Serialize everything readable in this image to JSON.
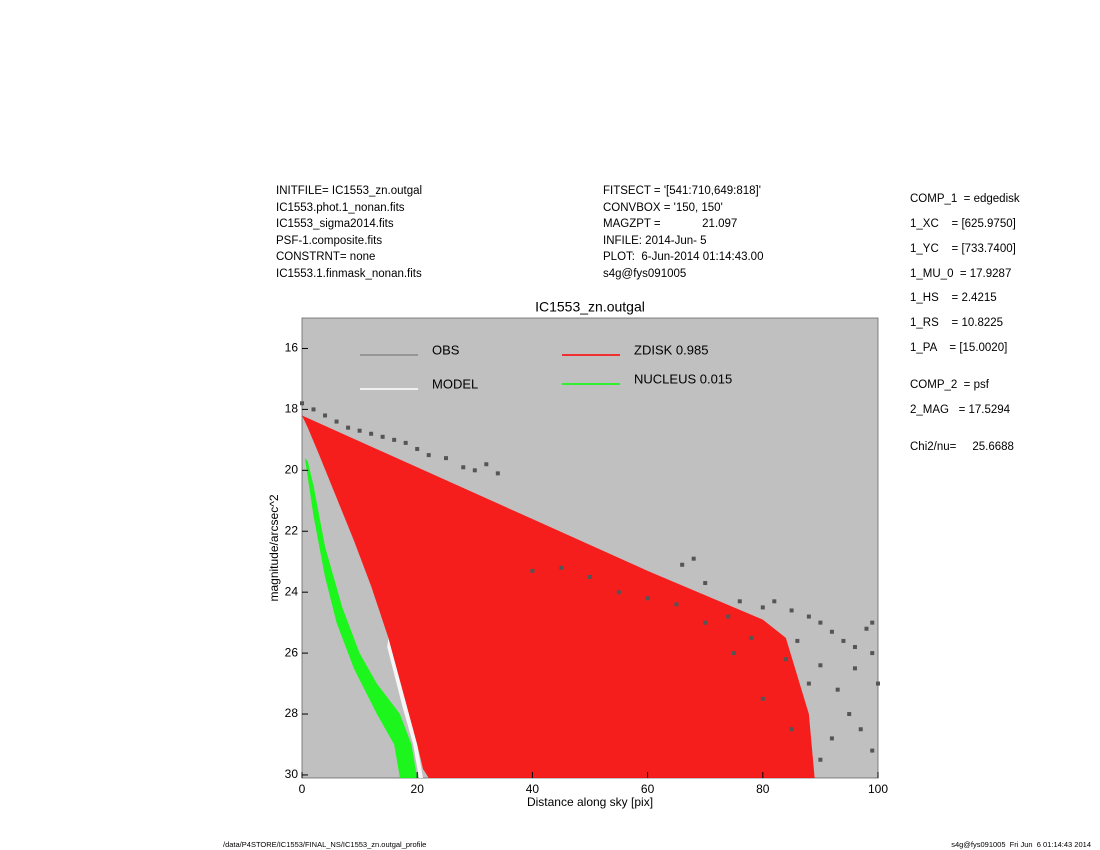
{
  "header": {
    "left": [
      "INITFILE= IC1553_zn.outgal",
      "IC1553.phot.1_nonan.fits",
      "IC1553_sigma2014.fits",
      "PSF-1.composite.fits",
      "CONSTRNT= none",
      "IC1553.1.finmask_nonan.fits"
    ],
    "middle": [
      "FITSECT = '[541:710,649:818]'",
      "CONVBOX = '150, 150'",
      "MAGZPT =             21.097",
      "INFILE: 2014-Jun- 5",
      "PLOT:  6-Jun-2014 01:14:43.00",
      "s4g@fys091005"
    ],
    "params": [
      "COMP_1  = edgedisk",
      "1_XC    = [625.9750]",
      "1_YC    = [733.7400]",
      "1_MU_0  = 17.9287",
      "1_HS    = 2.4215",
      "1_RS    = 10.8225",
      "1_PA    = [15.0020]",
      "COMP_2  = psf",
      "2_MAG   = 17.5294",
      "Chi2/nu=     25.6688"
    ]
  },
  "footer": {
    "left": "/data/P4STORE/IC1553/FINAL_NS/IC1553_zn.outgal_profile",
    "right": "s4g@fys091005  Fri Jun  6 01:14:43 2014"
  },
  "chart_data": {
    "type": "scatter",
    "title": "IC1553_zn.outgal",
    "xlabel": "Distance along sky [pix]",
    "ylabel": "magnitude/arcsec^2",
    "xlim": [
      0,
      100
    ],
    "ylim": [
      15,
      30.1
    ],
    "y_inverted": true,
    "xticks": [
      0,
      20,
      40,
      60,
      80,
      100
    ],
    "yticks": [
      16,
      18,
      20,
      22,
      24,
      26,
      28,
      30
    ],
    "series": [
      {
        "name": "OBS",
        "color": "#555555",
        "type": "scatter",
        "x": [
          0,
          2,
          4,
          6,
          8,
          10,
          12,
          14,
          16,
          18,
          20,
          22,
          25,
          28,
          30,
          32,
          34,
          66,
          68,
          70,
          76,
          80,
          82,
          85,
          88,
          90,
          92,
          94,
          96,
          98,
          99,
          86,
          90,
          93,
          95,
          97,
          99,
          88,
          92,
          84,
          78,
          74,
          70,
          65,
          60,
          55,
          50,
          45,
          40,
          75,
          80,
          85,
          90,
          96,
          100,
          99
        ],
        "values": [
          17.8,
          18,
          18.2,
          18.4,
          18.6,
          18.7,
          18.8,
          18.9,
          19,
          19.1,
          19.3,
          19.5,
          19.6,
          19.9,
          20,
          19.8,
          20.1,
          23.1,
          22.9,
          23.7,
          24.3,
          24.5,
          24.3,
          24.6,
          24.8,
          25,
          25.3,
          25.6,
          25.8,
          25.2,
          26,
          25.6,
          26.4,
          27.2,
          28,
          28.5,
          29.2,
          27,
          28.8,
          26.2,
          25.5,
          24.8,
          25,
          24.4,
          24.2,
          24,
          23.5,
          23.2,
          23.3,
          26,
          27.5,
          28.5,
          29.5,
          26.5,
          27,
          25
        ]
      },
      {
        "name": "MODEL",
        "color": "#ffffff",
        "type": "area",
        "x": [
          15,
          18,
          20,
          21,
          20.3,
          19.3,
          17.5,
          14.8
        ],
        "values": [
          25.5,
          27.6,
          29,
          30.1,
          30.1,
          29,
          27.8,
          25.8
        ]
      },
      {
        "name": "ZDISK  0.985",
        "color": "#ff0000",
        "type": "area",
        "x": [
          0,
          20,
          40,
          60,
          80,
          84,
          88,
          89,
          22,
          21,
          20,
          18,
          15,
          12,
          9,
          6,
          3,
          1
        ],
        "values": [
          18.2,
          19.9,
          21.6,
          23.3,
          24.9,
          25.5,
          28,
          30.1,
          30.1,
          29.8,
          29,
          27.6,
          25.5,
          23.8,
          22.3,
          20.9,
          19.5,
          18.6
        ]
      },
      {
        "name": "NUCLEUS  0.015",
        "color": "#00ff00",
        "type": "area",
        "x": [
          0.5,
          2,
          4,
          6,
          9,
          13,
          16,
          17,
          20,
          19,
          17,
          13,
          10,
          7,
          4,
          2,
          1
        ],
        "values": [
          19.6,
          21.5,
          23.5,
          25,
          26.5,
          28,
          29,
          30.1,
          30.1,
          29,
          28,
          27,
          26,
          24.5,
          22.5,
          20.5,
          19.7
        ]
      }
    ]
  }
}
